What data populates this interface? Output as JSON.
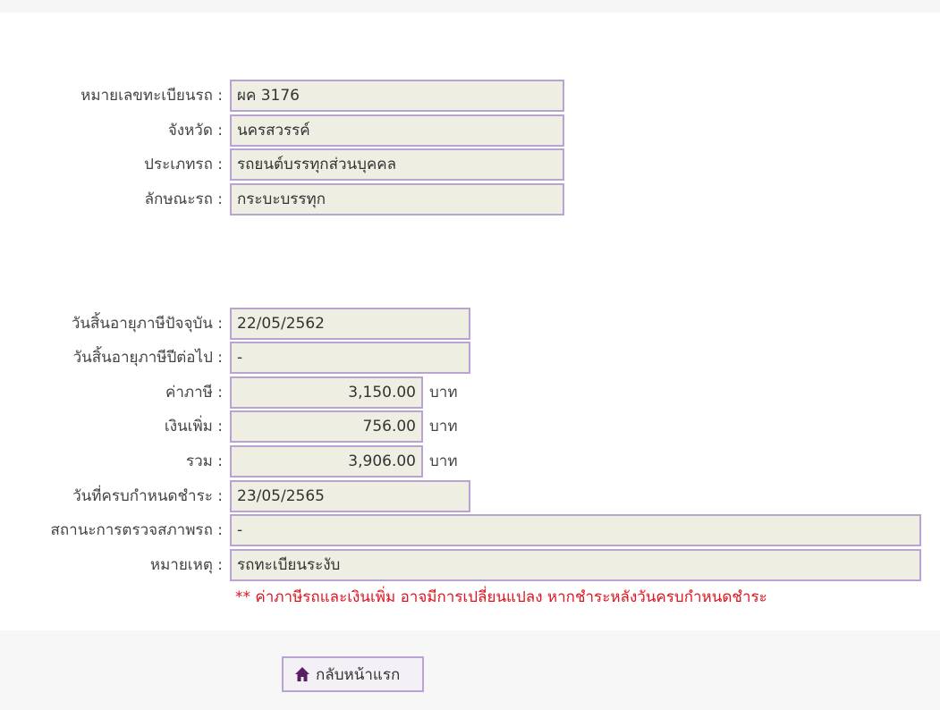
{
  "vehicle": [
    {
      "label": "หมายเลขทะเบียนรถ :",
      "value": "ผค 3176"
    },
    {
      "label": "จังหวัด :",
      "value": "นครสวรรค์"
    },
    {
      "label": "ประเภทรถ :",
      "value": "รถยนต์บรรทุกส่วนบุคคล"
    },
    {
      "label": "ลักษณะรถ :",
      "value": "กระบะบรรทุก"
    }
  ],
  "tax": {
    "current_expiry": {
      "label": "วันสิ้นอายุภาษีปัจจุบัน :",
      "value": "22/05/2562"
    },
    "next_expiry": {
      "label": "วันสิ้นอายุภาษีปีต่อไป :",
      "value": "-"
    },
    "tax_amount": {
      "label": "ค่าภาษี :",
      "value": "3,150.00",
      "unit": "บาท"
    },
    "surcharge": {
      "label": "เงินเพิ่ม :",
      "value": "756.00",
      "unit": "บาท"
    },
    "total": {
      "label": "รวม :",
      "value": "3,906.00",
      "unit": "บาท"
    },
    "due_date": {
      "label": "วันที่ครบกำหนดชำระ :",
      "value": "23/05/2565"
    },
    "inspection_status": {
      "label": "สถานะการตรวจสภาพรถ :",
      "value": "-"
    },
    "remark": {
      "label": "หมายเหตุ :",
      "value": "รถทะเบียนระงับ"
    }
  },
  "note": "** ค่าภาษีรถและเงินเพิ่ม อาจมีการเปลี่ยนแปลง หากชำระหลังวันครบกำหนดชำระ",
  "home_button": {
    "label": "กลับหน้าแรก",
    "icon": "home-icon"
  },
  "colors": {
    "field_bg": "#efeee2",
    "field_border": "#b9a3d3",
    "note": "#e0141e",
    "icon": "#5a1f63"
  }
}
